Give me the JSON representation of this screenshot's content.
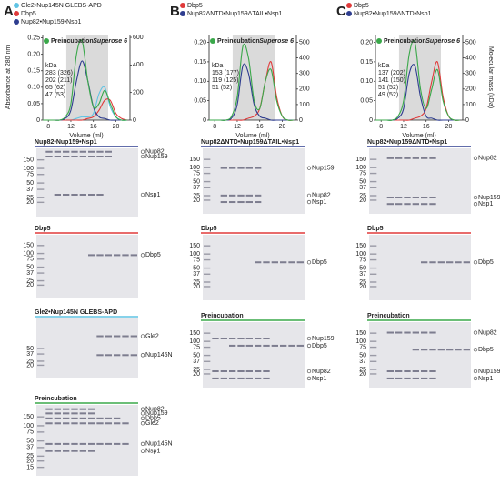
{
  "chart_data": [
    {
      "type": "line",
      "panel": "A",
      "xlabel": "Volume (ml)",
      "ylabel": "Absorbance at 280 nm",
      "x": [
        7,
        8,
        9,
        10,
        11,
        12,
        13,
        14,
        15,
        16,
        17,
        18,
        19,
        20,
        21,
        22
      ],
      "xlim": [
        7,
        22.5
      ],
      "xticks": [
        8,
        12,
        16,
        20
      ],
      "ylim": [
        0,
        0.26
      ],
      "yticks": [
        0,
        0.05,
        {
          "value": 0.1,
          "label": "0.10"
        },
        0.15,
        {
          "value": 0.2,
          "label": "0.20"
        },
        0.25
      ],
      "y2lim": [
        0,
        620
      ],
      "y2ticks": [
        0,
        200,
        400,
        600
      ],
      "annotation": "Superose 6",
      "mass_unit": "kDa",
      "mass_labels": [
        {
          "text": "283 (326)",
          "color": "#3aa84a"
        },
        {
          "text": "202 (211)",
          "color": "#2e3d8f"
        },
        {
          "text": "65 (62)",
          "color": "#5fc3e4"
        },
        {
          "text": "47 (53)",
          "color": "#e03a3a"
        }
      ],
      "series": [
        {
          "name": "Gle2•Nup145N GLEBS-APD",
          "color": "#5fc3e4",
          "values": [
            0,
            0,
            0,
            0,
            0,
            0,
            0.005,
            0.01,
            0.01,
            0.02,
            0.08,
            0.1,
            0.04,
            0.01,
            0,
            0
          ]
        },
        {
          "name": "Dbp5",
          "color": "#e03a3a",
          "values": [
            0,
            0,
            0,
            0,
            0,
            0,
            0,
            0,
            0.005,
            0.01,
            0.03,
            0.06,
            0.06,
            0.02,
            0.005,
            0
          ]
        },
        {
          "name": "Nup82•Nup159•Nsp1",
          "color": "#2e3d8f",
          "values": [
            0,
            0,
            0,
            0,
            0.005,
            0.03,
            0.12,
            0.18,
            0.12,
            0.04,
            0.01,
            0.005,
            0,
            0,
            0,
            0
          ]
        },
        {
          "name": "Preincubation",
          "color": "#3aa84a",
          "values": [
            0,
            0,
            0,
            0,
            0.01,
            0.05,
            0.2,
            0.24,
            0.12,
            0.04,
            0.05,
            0.09,
            0.05,
            0.01,
            0,
            0
          ]
        }
      ]
    },
    {
      "type": "line",
      "panel": "B",
      "xlabel": "Volume (ml)",
      "x": [
        7,
        8,
        9,
        10,
        11,
        12,
        13,
        14,
        15,
        16,
        17,
        18,
        19,
        20,
        21,
        22
      ],
      "xlim": [
        7,
        22.5
      ],
      "xticks": [
        8,
        12,
        16,
        20
      ],
      "ylim": [
        0,
        0.22
      ],
      "yticks": [
        0,
        0.05,
        {
          "value": 0.1,
          "label": "0.10"
        },
        0.15,
        {
          "value": 0.2,
          "label": "0.20"
        }
      ],
      "y2lim": [
        0,
        550
      ],
      "y2ticks": [
        0,
        100,
        200,
        300,
        400,
        500
      ],
      "annotation": "Superose 6",
      "mass_unit": "kDa",
      "mass_labels": [
        {
          "text": "153 (177)",
          "color": "#3aa84a"
        },
        {
          "text": "119 (125)",
          "color": "#2e3d8f"
        },
        {
          "text": "51 (52)",
          "color": "#e03a3a"
        }
      ],
      "series": [
        {
          "name": "Dbp5",
          "color": "#e03a3a",
          "values": [
            0,
            0,
            0,
            0,
            0,
            0,
            0,
            0.005,
            0.01,
            0.03,
            0.1,
            0.15,
            0.06,
            0.01,
            0,
            0
          ]
        },
        {
          "name": "Nup82ΔNTD•Nup159ΔTAIL•Nsp1",
          "color": "#2e3d8f",
          "values": [
            0,
            0,
            0,
            0,
            0.005,
            0.04,
            0.14,
            0.12,
            0.04,
            0.01,
            0.005,
            0,
            0,
            0,
            0,
            0
          ]
        },
        {
          "name": "Preincubation",
          "color": "#3aa84a",
          "values": [
            0,
            0,
            0,
            0,
            0.01,
            0.06,
            0.19,
            0.16,
            0.05,
            0.03,
            0.1,
            0.13,
            0.05,
            0.01,
            0,
            0
          ]
        }
      ]
    },
    {
      "type": "line",
      "panel": "C",
      "xlabel": "Volume (ml)",
      "y2label": "Molecular mass (kDa)",
      "x": [
        7,
        8,
        9,
        10,
        11,
        12,
        13,
        14,
        15,
        16,
        17,
        18,
        19,
        20,
        21,
        22
      ],
      "xlim": [
        7,
        22.5
      ],
      "xticks": [
        8,
        12,
        16,
        20
      ],
      "ylim": [
        0,
        0.22
      ],
      "yticks": [
        0,
        0.05,
        {
          "value": 0.1,
          "label": "0.10"
        },
        0.15,
        {
          "value": 0.2,
          "label": "0.20"
        }
      ],
      "y2lim": [
        0,
        550
      ],
      "y2ticks": [
        0,
        100,
        200,
        300,
        400,
        500
      ],
      "annotation": "Superose 6",
      "mass_unit": "kDa",
      "mass_labels": [
        {
          "text": "137 (202)",
          "color": "#3aa84a"
        },
        {
          "text": "141 (150)",
          "color": "#2e3d8f"
        },
        {
          "text": "51 (52)",
          "color": "#e03a3a"
        },
        {
          "text": "49 (52)",
          "color": "#3aa84a"
        }
      ],
      "series": [
        {
          "name": "Dbp5",
          "color": "#e03a3a",
          "values": [
            0,
            0,
            0,
            0,
            0,
            0,
            0,
            0.005,
            0.01,
            0.03,
            0.1,
            0.15,
            0.06,
            0.01,
            0,
            0
          ]
        },
        {
          "name": "Nup82•Nup159ΔNTD•Nsp1",
          "color": "#2e3d8f",
          "values": [
            0,
            0,
            0,
            0,
            0.005,
            0.03,
            0.12,
            0.14,
            0.06,
            0.01,
            0.005,
            0,
            0,
            0,
            0,
            0
          ]
        },
        {
          "name": "Preincubation",
          "color": "#3aa84a",
          "values": [
            0,
            0,
            0,
            0,
            0.01,
            0.05,
            0.17,
            0.2,
            0.08,
            0.03,
            0.08,
            0.13,
            0.05,
            0.01,
            0,
            0
          ]
        }
      ]
    }
  ],
  "gels": [
    [
      {
        "title": "Nup82•Nup159•Nsp1",
        "color": "#2e3d8f",
        "markers": [
          150,
          100,
          75,
          50,
          37,
          25,
          20
        ],
        "proteins": [
          "Nup82",
          "Nup159",
          "Nsp1"
        ]
      },
      {
        "title": "Dbp5",
        "color": "#e03a3a",
        "markers": [
          150,
          100,
          75,
          50,
          37,
          25,
          20
        ],
        "proteins": [
          "Dbp5"
        ]
      },
      {
        "title": "Gle2•Nup145N GLEBS-APD",
        "color": "#5fc3e4",
        "markers": [
          50,
          37,
          25,
          20
        ],
        "proteins": [
          "Gle2",
          "Nup145N"
        ]
      },
      {
        "title": "Preincubation",
        "color": "#3aa84a",
        "markers": [
          150,
          100,
          75,
          50,
          37,
          25,
          20,
          15
        ],
        "proteins": [
          "Nup82",
          "Nup159",
          "Dbp5",
          "Gle2",
          "Nup145N",
          "Nsp1"
        ]
      }
    ],
    [
      {
        "title": "Nup82ΔNTD•Nup159ΔTAIL•Nsp1",
        "color": "#2e3d8f",
        "markers": [
          150,
          100,
          75,
          50,
          37,
          25,
          20
        ],
        "proteins": [
          "Nup159",
          "Nup82",
          "Nsp1"
        ]
      },
      {
        "title": "Dbp5",
        "color": "#e03a3a",
        "markers": [
          150,
          100,
          75,
          50,
          37,
          25,
          20
        ],
        "proteins": [
          "Dbp5"
        ]
      },
      {
        "title": "Preincubation",
        "color": "#3aa84a",
        "markers": [
          150,
          100,
          75,
          50,
          37,
          25,
          20
        ],
        "proteins": [
          "Nup159",
          "Dbp5",
          "Nup82",
          "Nsp1"
        ]
      }
    ],
    [
      {
        "title": "Nup82•Nup159ΔNTD•Nsp1",
        "color": "#2e3d8f",
        "markers": [
          150,
          100,
          75,
          50,
          37,
          25,
          20
        ],
        "proteins": [
          "Nup82",
          "Nup159",
          "Nsp1"
        ]
      },
      {
        "title": "Dbp5",
        "color": "#e03a3a",
        "markers": [
          150,
          100,
          75,
          50,
          37,
          25,
          20
        ],
        "proteins": [
          "Dbp5"
        ]
      },
      {
        "title": "Preincubation",
        "color": "#3aa84a",
        "markers": [
          150,
          100,
          75,
          50,
          37,
          25,
          20
        ],
        "proteins": [
          "Nup82",
          "Dbp5",
          "Nup159",
          "Nsp1"
        ]
      }
    ]
  ]
}
